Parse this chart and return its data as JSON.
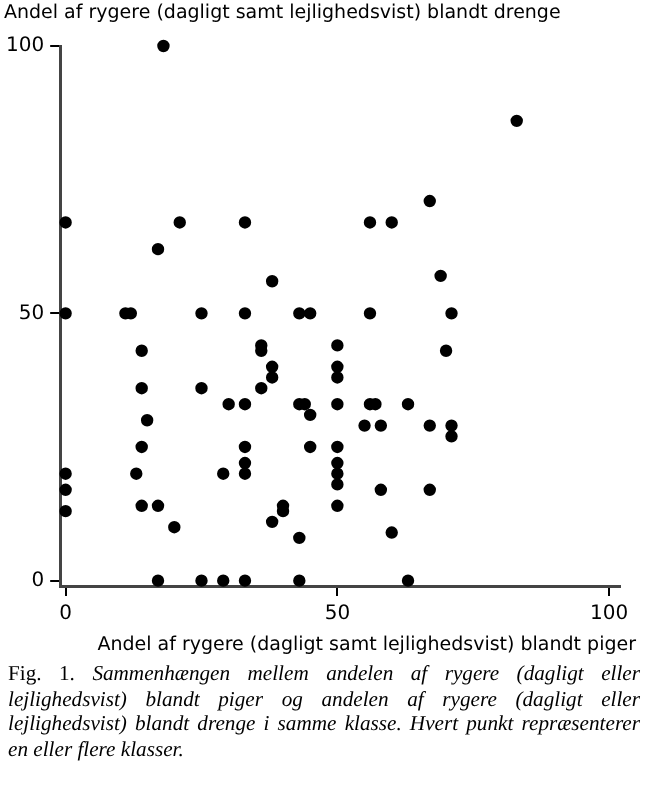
{
  "chart_data": {
    "type": "scatter",
    "xlabel": "Andel af rygere (dagligt samt lejlighedsvist) blandt piger",
    "ylabel": "Andel af rygere (dagligt samt lejlighedsvist) blandt drenge",
    "annotations": [
      "Fig. 1.",
      "Sammenhængen mellem andelen af rygere (dagligt eller lejlighedsvist) blandt piger og andelen af rygere (dagligt eller lejlighedsvist) blandt drenge i samme klasse. Hvert punkt repræsenterer en eller flere klasser."
    ],
    "marker": "circle",
    "grid": false,
    "legend": false,
    "xlim": [
      -1,
      102
    ],
    "ylim": [
      -1,
      100
    ],
    "xticks": [
      0,
      50,
      100
    ],
    "yticks": [
      0,
      50,
      100
    ],
    "series": [
      {
        "color": "#000000",
        "x": [
          0,
          11,
          12,
          25,
          33,
          43,
          45,
          14,
          36,
          36,
          38,
          38,
          14,
          25,
          36,
          30,
          33,
          43,
          44,
          45,
          15,
          14,
          33,
          33,
          33,
          45,
          13,
          29,
          0,
          0,
          0,
          14,
          17,
          40,
          40,
          38,
          20,
          43,
          17,
          25,
          29,
          33,
          43,
          50,
          50,
          50,
          50,
          50,
          50,
          50,
          50,
          50,
          56,
          71,
          70,
          56,
          57,
          63,
          55,
          58,
          67,
          71,
          71,
          58,
          67,
          60,
          63,
          18,
          0,
          21,
          33,
          17,
          38,
          83,
          67,
          56,
          60,
          69
        ],
        "values": [
          50,
          50,
          50,
          50,
          50,
          50,
          50,
          43,
          44,
          43,
          40,
          38,
          36,
          36,
          36,
          33,
          33,
          33,
          33,
          31,
          30,
          25,
          25,
          22,
          20,
          25,
          20,
          20,
          20,
          17,
          13,
          14,
          14,
          14,
          13,
          11,
          10,
          8,
          0,
          0,
          0,
          0,
          0,
          44,
          40,
          38,
          33,
          25,
          22,
          20,
          18,
          14,
          50,
          50,
          43,
          33,
          33,
          33,
          29,
          29,
          29,
          29,
          27,
          17,
          17,
          9,
          0,
          100,
          67,
          67,
          67,
          62,
          56,
          86,
          71,
          67,
          67,
          57
        ]
      }
    ]
  }
}
